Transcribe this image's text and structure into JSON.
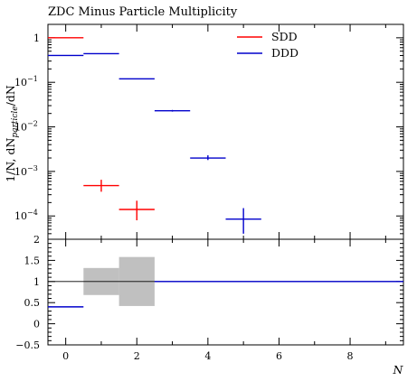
{
  "chart_data": [
    {
      "type": "histogram",
      "title": "ZDC Minus Particle Multiplicity",
      "ylabel": "1/N, dN_particle/dN",
      "yscale": "log",
      "ylim": [
        3e-05,
        2
      ],
      "xlim": [
        -0.5,
        9.5
      ],
      "legend": {
        "placement": "top-right",
        "entries": [
          {
            "label": "SDD",
            "color": "#ff0000"
          },
          {
            "label": "DDD",
            "color": "#0000cc"
          }
        ]
      },
      "series": [
        {
          "name": "SDD",
          "color": "#ff0000",
          "bins": [
            {
              "xlo": -0.5,
              "xhi": 0.5,
              "y": 1.0,
              "ylo": 1.0,
              "yhi": 1.0
            },
            {
              "xlo": 0.5,
              "xhi": 1.5,
              "y": 0.00048,
              "ylo": 0.00035,
              "yhi": 0.00065
            },
            {
              "xlo": 1.5,
              "xhi": 2.5,
              "y": 0.00014,
              "ylo": 8e-05,
              "yhi": 0.00022
            }
          ]
        },
        {
          "name": "DDD",
          "color": "#0000cc",
          "bins": [
            {
              "xlo": -0.5,
              "xhi": 0.5,
              "y": 0.4,
              "ylo": 0.4,
              "yhi": 0.4
            },
            {
              "xlo": 0.5,
              "xhi": 1.5,
              "y": 0.44,
              "ylo": 0.44,
              "yhi": 0.44
            },
            {
              "xlo": 1.5,
              "xhi": 2.5,
              "y": 0.12,
              "ylo": 0.12,
              "yhi": 0.12
            },
            {
              "xlo": 2.5,
              "xhi": 3.5,
              "y": 0.023,
              "ylo": 0.022,
              "yhi": 0.024
            },
            {
              "xlo": 3.5,
              "xhi": 4.5,
              "y": 0.002,
              "ylo": 0.0018,
              "yhi": 0.0023
            },
            {
              "xlo": 4.5,
              "xhi": 5.5,
              "y": 8.5e-05,
              "ylo": 4e-05,
              "yhi": 0.00015
            }
          ]
        }
      ],
      "yticks_major": [
        0.0001,
        0.001,
        0.01,
        0.1,
        1
      ],
      "yticks_labels": [
        "10",
        "10",
        "10",
        "10",
        "1"
      ],
      "yticks_exponents": [
        "−4",
        "−3",
        "−2",
        "−1",
        ""
      ]
    },
    {
      "type": "ratio",
      "xlabel": "N",
      "ylim": [
        -0.5,
        2
      ],
      "xlim": [
        -0.5,
        9.5
      ],
      "yticks": [
        -0.5,
        0,
        0.5,
        1,
        1.5,
        2
      ],
      "ytick_labels": [
        "−0.5",
        "0",
        "0.5",
        "1",
        "1.5",
        "2"
      ],
      "xticks": [
        0,
        2,
        4,
        6,
        8
      ],
      "xtick_labels": [
        "0",
        "2",
        "4",
        "6",
        "8"
      ],
      "reference_line": 1,
      "bands": [
        {
          "xlo": 0.5,
          "xhi": 1.5,
          "ylo": 0.68,
          "yhi": 1.32
        },
        {
          "xlo": 1.5,
          "xhi": 2.5,
          "ylo": 0.42,
          "yhi": 1.58
        }
      ],
      "ratio_series": {
        "name": "DDD",
        "color": "#0000cc",
        "bins": [
          {
            "xlo": -0.5,
            "xhi": 0.5,
            "y": 0.4
          },
          {
            "xlo": 2.5,
            "xhi": 9.5,
            "y": 1.0
          }
        ]
      }
    }
  ]
}
